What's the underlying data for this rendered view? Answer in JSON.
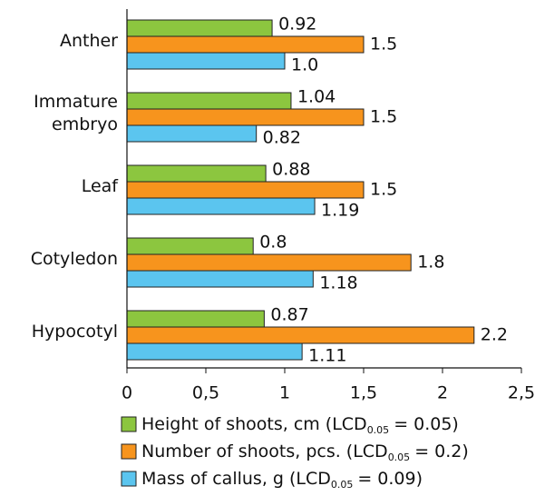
{
  "chart_data": {
    "type": "bar",
    "orientation": "horizontal",
    "categories": [
      "Anther",
      "Immature embryo",
      "Leaf",
      "Cotyledon",
      "Hypocotyl"
    ],
    "series": [
      {
        "name": "Height of shoots, cm",
        "color": "#8cc63f",
        "values": [
          0.92,
          1.04,
          0.88,
          0.8,
          0.87
        ],
        "lcd_prefix": "(LCD",
        "lcd_subscript": "0.05",
        "lcd_equals": "=",
        "lcd": 0.05,
        "lcd_close": ")"
      },
      {
        "name": "Number of shoots, pcs.",
        "color": "#f7941d",
        "values": [
          1.5,
          1.5,
          1.5,
          1.8,
          2.2
        ],
        "lcd_prefix": "(LCD",
        "lcd_subscript": "0.05",
        "lcd_equals": "=",
        "lcd": 0.2,
        "lcd_close": ")"
      },
      {
        "name": "Mass of callus, g",
        "color": "#5bc5ef",
        "values": [
          1.0,
          0.82,
          1.19,
          1.18,
          1.11
        ],
        "value_labels": [
          "1.0",
          "0.82",
          "1.19",
          "1.18",
          "1.11"
        ],
        "lcd_prefix": "(LCD",
        "lcd_subscript": "0.05",
        "lcd_equals": "=",
        "lcd": 0.09,
        "lcd_close": ")"
      }
    ],
    "xlim": [
      0,
      2.5
    ],
    "xticks": [
      0,
      {
        "value": 0.5,
        "label": "0,5"
      },
      1,
      {
        "value": 1.5,
        "label": "1,5"
      },
      2,
      {
        "value": 2.5,
        "label": "2,5"
      }
    ]
  }
}
